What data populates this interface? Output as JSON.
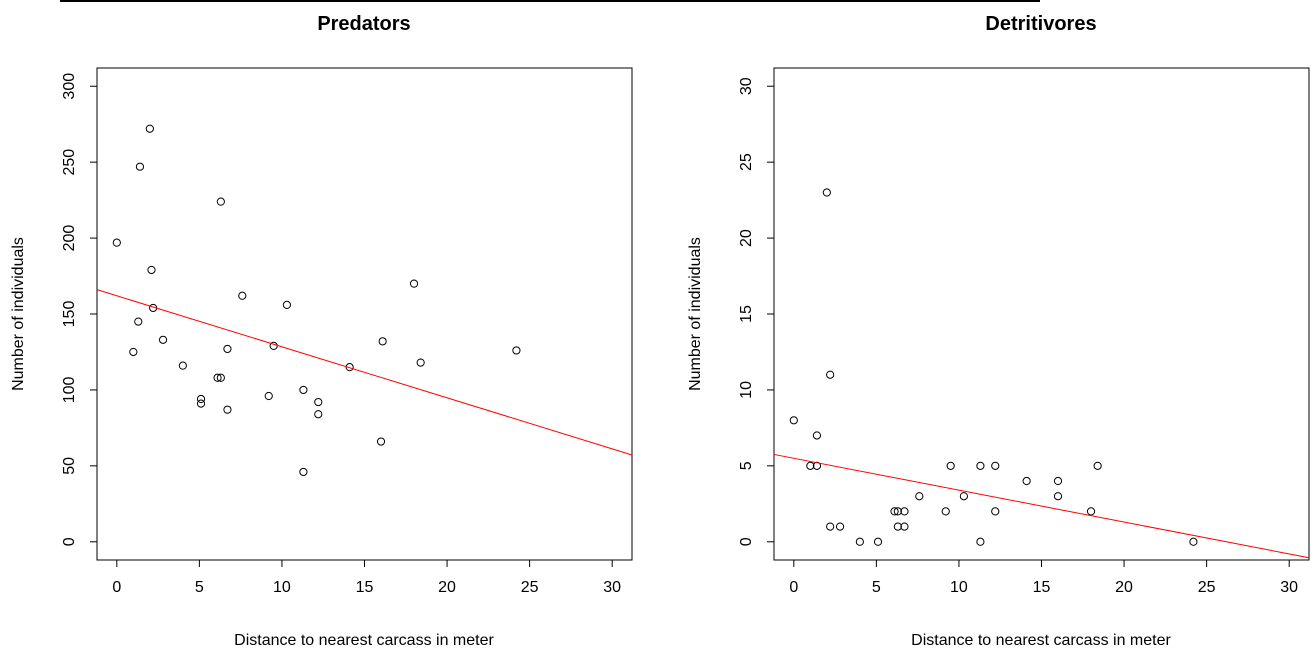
{
  "chart_data": [
    {
      "type": "scatter",
      "title": "Predators",
      "xlabel": "Distance to nearest carcass in meter",
      "ylabel": "Number of individuals",
      "xlim": [
        -1.2,
        31.2
      ],
      "ylim": [
        -12,
        312
      ],
      "xticks": [
        "0",
        "5",
        "10",
        "15",
        "20",
        "25",
        "30"
      ],
      "yticks": [
        "0",
        "50",
        "100",
        "150",
        "200",
        "250",
        "300"
      ],
      "points": [
        [
          0,
          197
        ],
        [
          1,
          125
        ],
        [
          1.3,
          145
        ],
        [
          1.4,
          247
        ],
        [
          2,
          272
        ],
        [
          2.1,
          179
        ],
        [
          2.2,
          154
        ],
        [
          2.8,
          133
        ],
        [
          4,
          116
        ],
        [
          5.1,
          94
        ],
        [
          5.1,
          91
        ],
        [
          6.1,
          108
        ],
        [
          6.3,
          108
        ],
        [
          6.3,
          224
        ],
        [
          6.7,
          127
        ],
        [
          6.7,
          87
        ],
        [
          7.6,
          162
        ],
        [
          9.2,
          96
        ],
        [
          9.5,
          129
        ],
        [
          10.3,
          156
        ],
        [
          11.3,
          100
        ],
        [
          11.3,
          46
        ],
        [
          12.2,
          92
        ],
        [
          12.2,
          84
        ],
        [
          14.1,
          115
        ],
        [
          16,
          66
        ],
        [
          16.1,
          132
        ],
        [
          18,
          170
        ],
        [
          18.4,
          118
        ],
        [
          24.2,
          126
        ]
      ],
      "fit_line": {
        "color": "#ff0000",
        "intercept": 162.0,
        "slope": -3.36
      },
      "point_color": "#000000",
      "grid": false
    },
    {
      "type": "scatter",
      "title": "Detritivores",
      "xlabel": "Distance to nearest carcass in meter",
      "ylabel": "Number of individuals",
      "xlim": [
        -1.2,
        31.2
      ],
      "ylim": [
        -1.2,
        31.2
      ],
      "xticks": [
        "0",
        "5",
        "10",
        "15",
        "20",
        "25",
        "30"
      ],
      "yticks": [
        "0",
        "5",
        "10",
        "15",
        "20",
        "25",
        "30"
      ],
      "points": [
        [
          0,
          8
        ],
        [
          1,
          5
        ],
        [
          1.4,
          5
        ],
        [
          1.4,
          7
        ],
        [
          2,
          23
        ],
        [
          2.2,
          11
        ],
        [
          2.2,
          1
        ],
        [
          2.8,
          1
        ],
        [
          4,
          0
        ],
        [
          5.1,
          0
        ],
        [
          6.1,
          2
        ],
        [
          6.3,
          2
        ],
        [
          6.3,
          1
        ],
        [
          6.7,
          1
        ],
        [
          6.7,
          2
        ],
        [
          7.6,
          3
        ],
        [
          9.2,
          2
        ],
        [
          9.5,
          5
        ],
        [
          10.3,
          3
        ],
        [
          11.3,
          5
        ],
        [
          11.3,
          0
        ],
        [
          12.2,
          5
        ],
        [
          12.2,
          2
        ],
        [
          14.1,
          4
        ],
        [
          16,
          4
        ],
        [
          16,
          3
        ],
        [
          18,
          2
        ],
        [
          18.4,
          5
        ],
        [
          24.2,
          0
        ]
      ],
      "fit_line": {
        "color": "#ff0000",
        "intercept": 5.5,
        "slope": -0.21
      },
      "point_color": "#000000",
      "grid": false
    }
  ]
}
